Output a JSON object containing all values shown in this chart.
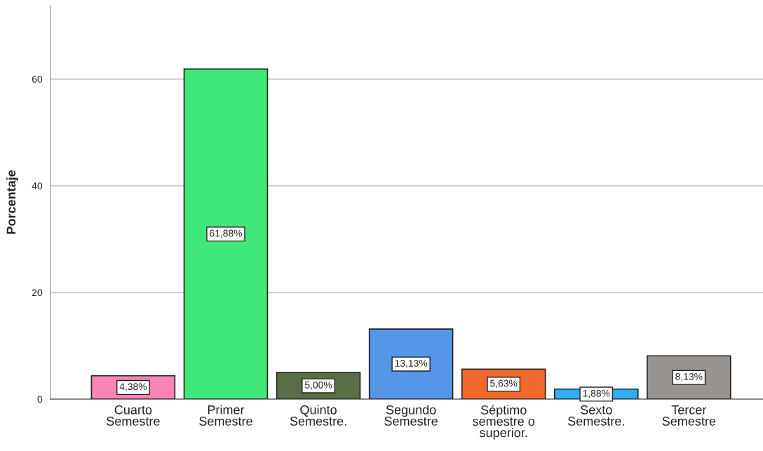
{
  "chart_data": {
    "type": "bar",
    "ylabel": "Porcentaje",
    "categories": [
      "Cuarto Semestre",
      "Primer Semestre",
      "Quinto Semestre.",
      "Segundo Semestre",
      "Séptimo semestre o superior.",
      "Sexto Semestre.",
      "Tercer Semestre"
    ],
    "values": [
      4.38,
      61.88,
      5.0,
      13.13,
      5.63,
      1.88,
      8.13
    ],
    "value_labels": [
      "4,38%",
      "61,88%",
      "5,00%",
      "13,13%",
      "5,63%",
      "1,88%",
      "8,13%"
    ],
    "colors": [
      "#fb84b6",
      "#40e87a",
      "#5a6e45",
      "#5596e6",
      "#f0682a",
      "#2faef8",
      "#979391"
    ],
    "ylim": [
      0,
      73.8
    ],
    "yticks": [
      0,
      20,
      40,
      60
    ],
    "grid": "y",
    "legend": false
  }
}
